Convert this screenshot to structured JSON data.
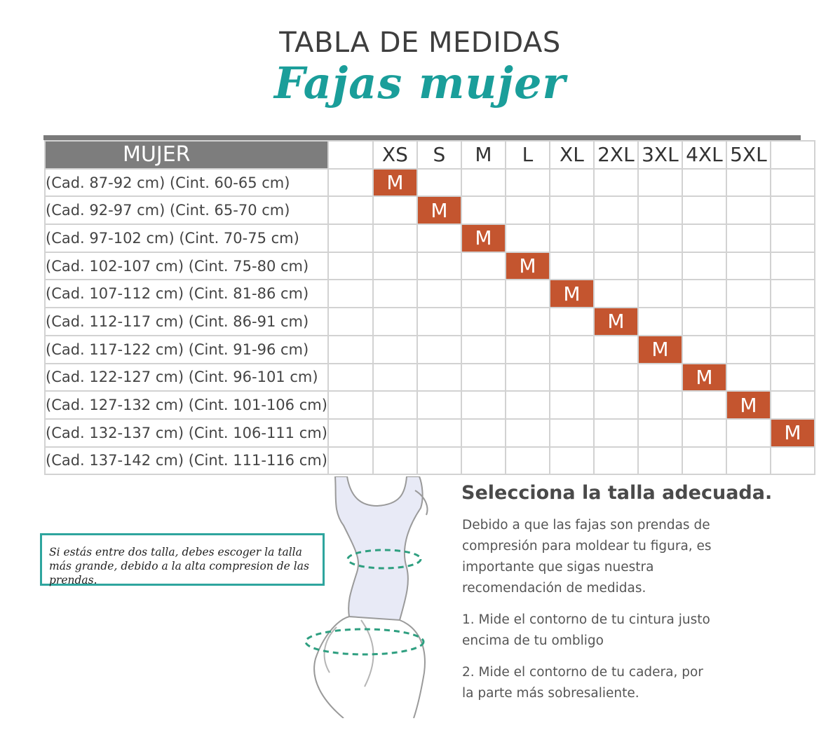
{
  "title": "TABLA DE MEDIDAS",
  "subtitle": "Fajas mujer",
  "table": {
    "header_label": "MUJER",
    "sizes": [
      "XS",
      "S",
      "M",
      "L",
      "XL",
      "2XL",
      "3XL",
      "4XL",
      "5XL",
      ""
    ],
    "mark_text": "M",
    "rows": [
      {
        "range": "(Cad. 87-92 cm) (Cint. 60-65 cm)",
        "size_index": 0
      },
      {
        "range": "(Cad. 92-97 cm) (Cint. 65-70 cm)",
        "size_index": 1
      },
      {
        "range": "(Cad. 97-102 cm) (Cint. 70-75 cm)",
        "size_index": 2
      },
      {
        "range": "(Cad. 102-107 cm) (Cint. 75-80 cm)",
        "size_index": 3
      },
      {
        "range": "(Cad. 107-112 cm) (Cint. 81-86 cm)",
        "size_index": 4
      },
      {
        "range": "(Cad. 112-117 cm) (Cint. 86-91 cm)",
        "size_index": 5
      },
      {
        "range": "(Cad. 117-122 cm) (Cint. 91-96 cm)",
        "size_index": 6
      },
      {
        "range": "(Cad. 122-127 cm) (Cint. 96-101 cm)",
        "size_index": 7
      },
      {
        "range": "(Cad. 127-132 cm) (Cint. 101-106 cm)",
        "size_index": 8
      },
      {
        "range": "(Cad. 132-137 cm) (Cint. 106-111 cm)",
        "size_index": 9
      },
      {
        "range": "(Cad. 137-142 cm) (Cint. 111-116 cm)",
        "size_index": null
      }
    ]
  },
  "note": "Si estás entre dos talla, debes escoger la talla más grande, debido a la alta compresion de las prendas.",
  "instructions": {
    "heading": "Selecciona la talla adecuada.",
    "intro": "Debido a que las fajas son prendas de compresión para moldear tu figura, es importante que sigas nuestra recomendación de medidas.",
    "step1": "1. Mide el contorno de tu cintura justo encima de tu ombligo",
    "step2": "2. Mide el contorno de tu cadera, por la parte más sobresaliente."
  },
  "colors": {
    "accent_teal": "#1a9e9a",
    "mark_fill": "#c4552f",
    "header_gray": "#7d7d7d"
  },
  "icons": [
    "body-figure-icon",
    "measure-tape-icon"
  ]
}
